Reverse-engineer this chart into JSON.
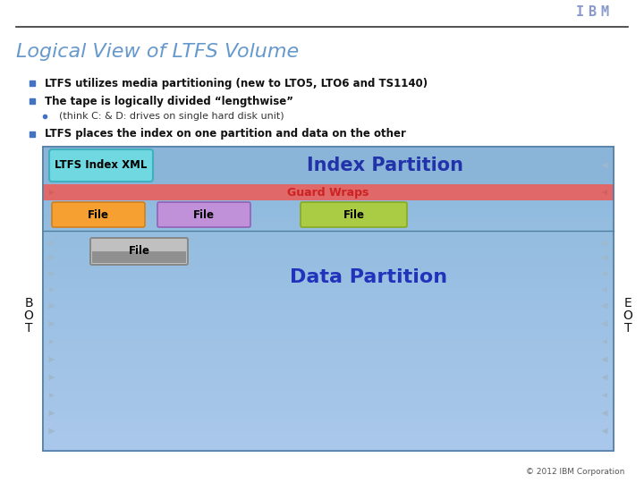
{
  "title": "Logical View of LTFS Volume",
  "title_color": "#6699CC",
  "title_fontsize": 16,
  "bg_color": "#FFFFFF",
  "bullet1": "LTFS utilizes media partitioning (new to LTO5, LTO6 and TS1140)",
  "bullet2": "The tape is logically divided “lengthwise”",
  "bullet3": "(think C: & D: drives on single hard disk unit)",
  "bullet4": "LTFS places the index on one partition and data on the other",
  "diagram_bg_top": "#A0BFDF",
  "diagram_bg_bot": "#88B8E8",
  "diagram_border": "#6090B0",
  "guard_wrap_bg": "#E06060",
  "guard_wrap_text_color": "#CC2222",
  "index_partition_text_color": "#2233AA",
  "data_partition_text_color": "#2233BB",
  "ltfs_btn_face": "#70D8E0",
  "ltfs_btn_edge": "#40B0C0",
  "file_orange": "#F5A030",
  "file_orange_edge": "#D08020",
  "file_purple": "#C090D8",
  "file_purple_edge": "#9060B8",
  "file_green": "#AACC44",
  "file_green_edge": "#88AA22",
  "file_gray_top": "#D0D0D0",
  "file_gray_bot": "#909090",
  "file_gray_edge": "#888888",
  "arrow_color": "#A0B8CC",
  "bullet_color": "#4472C4",
  "sub_bullet_color": "#4472C4",
  "copyright": "© 2012 IBM Corporation",
  "ibm_color": "#8899CC",
  "sep_line_color": "#5080A0"
}
